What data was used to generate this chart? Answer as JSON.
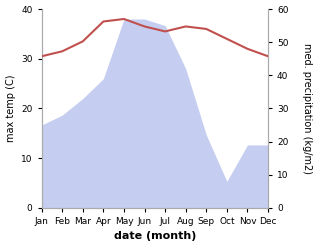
{
  "months": [
    "Jan",
    "Feb",
    "Mar",
    "Apr",
    "May",
    "Jun",
    "Jul",
    "Aug",
    "Sep",
    "Oct",
    "Nov",
    "Dec"
  ],
  "temperature": [
    30.5,
    31.5,
    33.5,
    37.5,
    38.0,
    36.5,
    35.5,
    36.5,
    36.0,
    34.0,
    32.0,
    30.5
  ],
  "precipitation": [
    25,
    28,
    33,
    39,
    57,
    57,
    55,
    42,
    22,
    8,
    19,
    19
  ],
  "temp_color": "#c0504d",
  "precip_fill_color": "#c5cef0",
  "xlabel": "date (month)",
  "ylabel_left": "max temp (C)",
  "ylabel_right": "med. precipitation (kg/m2)",
  "ylim_left": [
    0,
    40
  ],
  "ylim_right": [
    0,
    60
  ],
  "yticks_left": [
    0,
    10,
    20,
    30,
    40
  ],
  "yticks_right": [
    0,
    10,
    20,
    30,
    40,
    50,
    60
  ],
  "spine_color": "#aaaaaa",
  "tick_label_size": 6.5,
  "ylabel_fontsize": 7,
  "xlabel_fontsize": 8
}
